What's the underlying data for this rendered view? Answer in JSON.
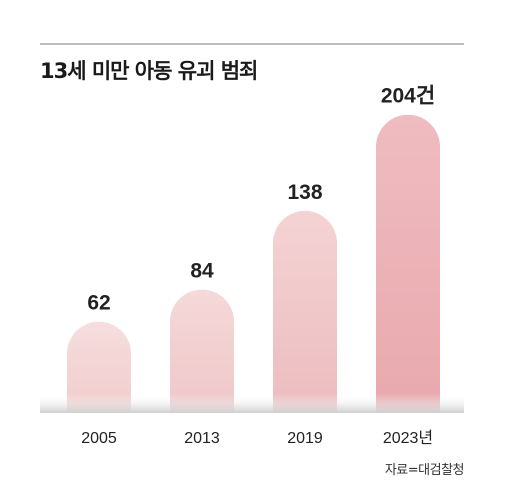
{
  "title": "13세 미만 아동 유괴 범죄",
  "source": "자료=대검찰청",
  "colors": {
    "bar_light": "#f4d7d7",
    "bar_dark": "#ecaeb4",
    "baseline_shadow": "#d9d9d9",
    "rule": "#bdbdbd"
  },
  "chart_data": {
    "type": "bar",
    "title": "13세 미만 아동 유괴 범죄",
    "categories": [
      "2005",
      "2013",
      "2019",
      "2023년"
    ],
    "values": [
      62,
      84,
      138,
      204
    ],
    "value_labels": [
      "62",
      "84",
      "138",
      "204건"
    ],
    "ylim": [
      0,
      210
    ],
    "grid": false,
    "legend": "none",
    "xlabel": "",
    "ylabel": ""
  }
}
